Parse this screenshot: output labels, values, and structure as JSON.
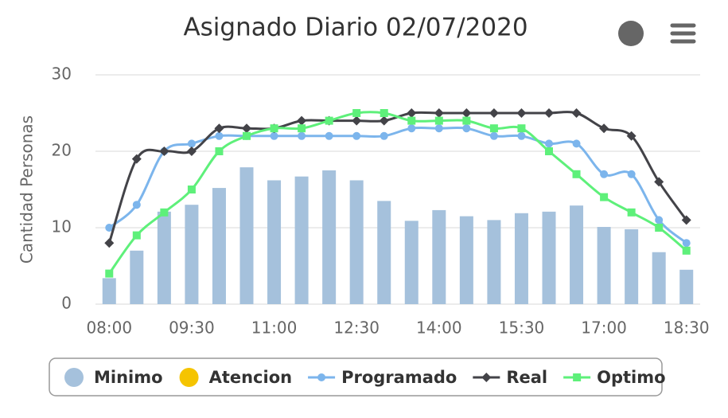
{
  "chart_data": {
    "type": "combo",
    "title": "Asignado Diario 02/07/2020",
    "y_label": "Cantidad Personas",
    "categories": [
      "08:00",
      null,
      null,
      "09:30",
      null,
      null,
      "11:00",
      null,
      null,
      "12:30",
      null,
      null,
      "14:00",
      null,
      null,
      "15:30",
      null,
      null,
      "17:00",
      null,
      null,
      "18:30"
    ],
    "ylim": [
      0,
      30
    ],
    "yticks": [
      0,
      10,
      20,
      30
    ],
    "grid": true,
    "series": [
      {
        "name": "Minimo",
        "type": "bar",
        "color": "#a5c1dc",
        "values": [
          3.4,
          7.0,
          12.1,
          13.0,
          15.2,
          17.9,
          16.2,
          16.7,
          17.5,
          16.2,
          13.5,
          10.9,
          12.3,
          11.5,
          11.0,
          11.9,
          12.1,
          12.9,
          10.1,
          9.8,
          6.8,
          4.5
        ]
      },
      {
        "name": "Atencion",
        "type": "bar",
        "color": "#f5c400",
        "values": [
          null,
          null,
          null,
          null,
          null,
          null,
          null,
          null,
          null,
          null,
          null,
          null,
          null,
          null,
          null,
          null,
          null,
          null,
          null,
          null,
          null,
          null
        ]
      },
      {
        "name": "Programado",
        "type": "line",
        "marker": "circle",
        "color": "#7cb5ec",
        "values": [
          10,
          13,
          20,
          21,
          22,
          22,
          22,
          22,
          22,
          22,
          22,
          23,
          23,
          23,
          22,
          22,
          21,
          21,
          17,
          17,
          11,
          8
        ]
      },
      {
        "name": "Real",
        "type": "line",
        "marker": "diamond",
        "color": "#434348",
        "values": [
          8,
          19,
          20,
          20,
          23,
          23,
          23,
          24,
          24,
          24,
          24,
          25,
          25,
          25,
          25,
          25,
          25,
          25,
          23,
          22,
          16,
          11
        ]
      },
      {
        "name": "Optimo",
        "type": "line",
        "marker": "square",
        "color": "#5ef07a",
        "values": [
          4,
          9,
          12,
          15,
          20,
          22,
          23,
          23,
          24,
          25,
          25,
          24,
          24,
          24,
          23,
          23,
          20,
          17,
          14,
          12,
          10,
          7
        ]
      }
    ]
  }
}
